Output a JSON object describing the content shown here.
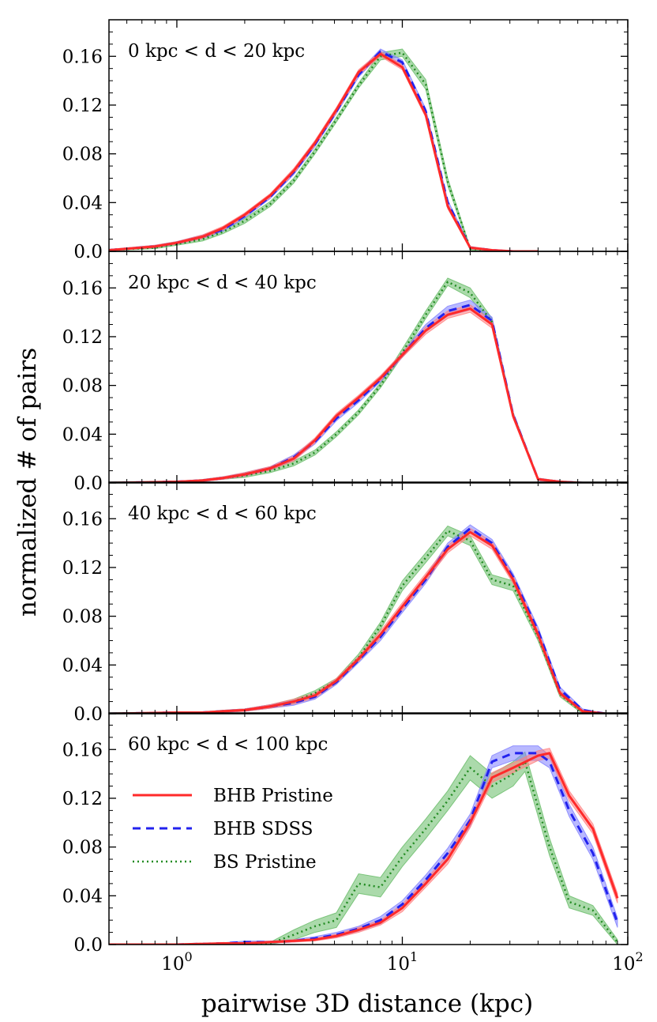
{
  "chart_data": {
    "type": "line",
    "xscale": "log",
    "xlim": [
      0.5,
      100
    ],
    "ylim": [
      0.0,
      0.19
    ],
    "x_ticks": [
      {
        "base": "10",
        "exp": "0"
      },
      {
        "base": "10",
        "exp": "1"
      },
      {
        "base": "10",
        "exp": "2"
      }
    ],
    "y_ticks": [
      "0.0",
      "0.04",
      "0.08",
      "0.12",
      "0.16"
    ],
    "xlabel": "pairwise 3D distance (kpc)",
    "ylabel": "normalized # of pairs",
    "legend": [
      {
        "key": "bhb_pristine",
        "label": "BHB Pristine"
      },
      {
        "key": "bhb_sdss",
        "label": "BHB SDSS"
      },
      {
        "key": "bs_pristine",
        "label": "BS Pristine"
      }
    ],
    "colors": {
      "bhb_pristine": "#ff2a2a",
      "bhb_sdss": "#2222ee",
      "bs_pristine": "#228b22",
      "bhb_pristine_band": "#ff8080",
      "bhb_sdss_band": "#8080ff",
      "bs_pristine_band": "#66bb66"
    },
    "panels": [
      {
        "title": "0 kpc < d < 20 kpc",
        "series": {
          "bhb_pristine": {
            "x": [
              0.5,
              0.8,
              1.0,
              1.3,
              1.6,
              2.0,
              2.6,
              3.3,
              4.1,
              5.1,
              6.4,
              8.0,
              10.0,
              12.7,
              15.9,
              20.0,
              25.0,
              31.0,
              40.0
            ],
            "y": [
              0.001,
              0.004,
              0.007,
              0.012,
              0.019,
              0.03,
              0.046,
              0.066,
              0.089,
              0.116,
              0.147,
              0.162,
              0.151,
              0.112,
              0.037,
              0.003,
              0.001,
              0.0,
              0.0
            ],
            "err": [
              0.0005,
              0.001,
              0.001,
              0.0015,
              0.0015,
              0.0015,
              0.0015,
              0.002,
              0.002,
              0.002,
              0.002,
              0.002,
              0.002,
              0.002,
              0.002,
              0.001,
              0.0005,
              0.0,
              0.0
            ]
          },
          "bhb_sdss": {
            "x": [
              0.5,
              0.8,
              1.0,
              1.3,
              1.6,
              2.0,
              2.6,
              3.3,
              4.1,
              5.1,
              6.4,
              8.0,
              10.0,
              12.7,
              15.9,
              20.0,
              25.0,
              31.0,
              40.0
            ],
            "y": [
              0.001,
              0.004,
              0.007,
              0.012,
              0.018,
              0.029,
              0.045,
              0.065,
              0.088,
              0.115,
              0.145,
              0.164,
              0.155,
              0.115,
              0.04,
              0.003,
              0.001,
              0.0,
              0.0
            ],
            "err": [
              0.0005,
              0.001,
              0.001,
              0.0015,
              0.0015,
              0.0015,
              0.0015,
              0.002,
              0.002,
              0.002,
              0.002,
              0.002,
              0.002,
              0.002,
              0.002,
              0.001,
              0.0005,
              0.0,
              0.0
            ]
          },
          "bs_pristine": {
            "x": [
              0.5,
              0.8,
              1.0,
              1.3,
              1.6,
              2.0,
              2.6,
              3.3,
              4.1,
              5.1,
              6.4,
              8.0,
              10.0,
              12.7,
              15.9,
              20.0,
              25.0,
              31.0,
              40.0
            ],
            "y": [
              0.001,
              0.003,
              0.006,
              0.01,
              0.016,
              0.025,
              0.039,
              0.058,
              0.082,
              0.108,
              0.136,
              0.16,
              0.163,
              0.137,
              0.057,
              0.002,
              0.001,
              0.0,
              0.0
            ],
            "err": [
              0.0005,
              0.0008,
              0.001,
              0.0015,
              0.0015,
              0.002,
              0.002,
              0.002,
              0.002,
              0.002,
              0.002,
              0.003,
              0.003,
              0.004,
              0.003,
              0.001,
              0.0005,
              0.0,
              0.0
            ]
          }
        }
      },
      {
        "title": "20 kpc < d < 40 kpc",
        "series": {
          "bhb_pristine": {
            "x": [
              0.5,
              1.0,
              1.3,
              1.6,
              2.0,
              2.6,
              3.3,
              4.1,
              5.1,
              6.4,
              8.0,
              10.0,
              12.7,
              15.9,
              20.0,
              25.0,
              31.0,
              40.0,
              50.0,
              63.0,
              80.0
            ],
            "y": [
              0.0,
              0.001,
              0.002,
              0.004,
              0.007,
              0.012,
              0.02,
              0.035,
              0.055,
              0.07,
              0.086,
              0.105,
              0.125,
              0.138,
              0.143,
              0.13,
              0.055,
              0.003,
              0.001,
              0.0,
              0.0
            ],
            "err": [
              0.0,
              0.0005,
              0.0008,
              0.001,
              0.0015,
              0.0015,
              0.002,
              0.002,
              0.002,
              0.002,
              0.002,
              0.002,
              0.003,
              0.003,
              0.003,
              0.003,
              0.002,
              0.001,
              0.0005,
              0.0,
              0.0
            ]
          },
          "bhb_sdss": {
            "x": [
              0.5,
              1.0,
              1.3,
              1.6,
              2.0,
              2.6,
              3.3,
              4.1,
              5.1,
              6.4,
              8.0,
              10.0,
              12.7,
              15.9,
              20.0,
              25.0,
              31.0,
              40.0,
              50.0,
              63.0,
              80.0
            ],
            "y": [
              0.0,
              0.001,
              0.002,
              0.004,
              0.007,
              0.012,
              0.021,
              0.034,
              0.053,
              0.068,
              0.085,
              0.105,
              0.127,
              0.141,
              0.146,
              0.133,
              0.056,
              0.003,
              0.001,
              0.0,
              0.0
            ],
            "err": [
              0.0,
              0.0005,
              0.0008,
              0.001,
              0.0015,
              0.0015,
              0.002,
              0.002,
              0.002,
              0.002,
              0.002,
              0.002,
              0.003,
              0.004,
              0.004,
              0.003,
              0.002,
              0.001,
              0.0005,
              0.0,
              0.0
            ]
          },
          "bs_pristine": {
            "x": [
              0.5,
              1.0,
              1.3,
              1.6,
              2.0,
              2.6,
              3.3,
              4.1,
              5.1,
              6.4,
              8.0,
              10.0,
              12.7,
              15.9,
              20.0,
              25.0,
              31.0,
              40.0,
              50.0,
              63.0,
              80.0
            ],
            "y": [
              0.0,
              0.001,
              0.002,
              0.004,
              0.006,
              0.01,
              0.016,
              0.025,
              0.04,
              0.058,
              0.08,
              0.107,
              0.138,
              0.165,
              0.156,
              0.132,
              0.056,
              0.003,
              0.001,
              0.0,
              0.0
            ],
            "err": [
              0.0,
              0.0005,
              0.0008,
              0.001,
              0.0015,
              0.0015,
              0.002,
              0.002,
              0.002,
              0.002,
              0.002,
              0.003,
              0.003,
              0.003,
              0.004,
              0.003,
              0.002,
              0.001,
              0.0005,
              0.0,
              0.0
            ]
          }
        }
      },
      {
        "title": "40 kpc < d < 60 kpc",
        "series": {
          "bhb_pristine": {
            "x": [
              0.5,
              1.0,
              1.3,
              1.6,
              2.0,
              2.6,
              3.3,
              4.1,
              5.1,
              6.4,
              8.0,
              10.0,
              12.7,
              15.9,
              20.0,
              25.0,
              31.0,
              40.0,
              50.0,
              63.0,
              80.0
            ],
            "y": [
              0.0,
              0.001,
              0.001,
              0.002,
              0.003,
              0.006,
              0.01,
              0.015,
              0.027,
              0.045,
              0.065,
              0.088,
              0.112,
              0.135,
              0.149,
              0.138,
              0.11,
              0.065,
              0.017,
              0.002,
              0.0
            ],
            "err": [
              0.0,
              0.0005,
              0.0005,
              0.0008,
              0.001,
              0.0015,
              0.002,
              0.002,
              0.002,
              0.002,
              0.003,
              0.003,
              0.003,
              0.003,
              0.003,
              0.003,
              0.003,
              0.003,
              0.002,
              0.001,
              0.0
            ]
          },
          "bhb_sdss": {
            "x": [
              0.5,
              1.0,
              1.3,
              1.6,
              2.0,
              2.6,
              3.3,
              4.1,
              5.1,
              6.4,
              8.0,
              10.0,
              12.7,
              15.9,
              20.0,
              25.0,
              31.0,
              40.0,
              50.0,
              63.0,
              80.0
            ],
            "y": [
              0.0,
              0.001,
              0.001,
              0.002,
              0.003,
              0.006,
              0.009,
              0.014,
              0.026,
              0.044,
              0.063,
              0.086,
              0.11,
              0.137,
              0.152,
              0.14,
              0.112,
              0.068,
              0.02,
              0.003,
              0.0
            ],
            "err": [
              0.0,
              0.0005,
              0.0005,
              0.0008,
              0.001,
              0.0015,
              0.002,
              0.002,
              0.002,
              0.002,
              0.003,
              0.003,
              0.003,
              0.003,
              0.003,
              0.003,
              0.003,
              0.003,
              0.002,
              0.001,
              0.0
            ]
          },
          "bs_pristine": {
            "x": [
              0.5,
              1.0,
              1.3,
              1.6,
              2.0,
              2.6,
              3.3,
              4.1,
              5.1,
              6.4,
              8.0,
              10.0,
              12.7,
              15.9,
              20.0,
              25.0,
              31.0,
              40.0,
              50.0,
              63.0,
              80.0
            ],
            "y": [
              0.0,
              0.001,
              0.001,
              0.002,
              0.003,
              0.006,
              0.01,
              0.017,
              0.027,
              0.046,
              0.072,
              0.105,
              0.128,
              0.15,
              0.142,
              0.11,
              0.105,
              0.063,
              0.016,
              0.001,
              0.0
            ],
            "err": [
              0.0,
              0.0005,
              0.0005,
              0.0008,
              0.001,
              0.0015,
              0.002,
              0.002,
              0.002,
              0.003,
              0.003,
              0.004,
              0.004,
              0.004,
              0.004,
              0.004,
              0.004,
              0.003,
              0.002,
              0.001,
              0.0
            ]
          }
        }
      },
      {
        "title": "60 kpc < d < 100 kpc",
        "series": {
          "bhb_pristine": {
            "x": [
              0.5,
              1.0,
              1.6,
              2.0,
              2.6,
              3.3,
              4.1,
              5.1,
              6.4,
              8.0,
              10.0,
              12.7,
              15.9,
              20.0,
              25.0,
              31.0,
              40.0,
              45.0,
              55.0,
              70.0,
              90.0
            ],
            "y": [
              0.0,
              0.0,
              0.001,
              0.001,
              0.002,
              0.003,
              0.004,
              0.007,
              0.012,
              0.018,
              0.03,
              0.05,
              0.07,
              0.1,
              0.137,
              0.145,
              0.155,
              0.157,
              0.122,
              0.095,
              0.038
            ],
            "err": [
              0.0,
              0.0,
              0.0005,
              0.0005,
              0.0008,
              0.001,
              0.001,
              0.0015,
              0.002,
              0.002,
              0.003,
              0.003,
              0.004,
              0.004,
              0.004,
              0.004,
              0.004,
              0.004,
              0.004,
              0.004,
              0.004
            ]
          },
          "bhb_sdss": {
            "x": [
              0.5,
              1.0,
              1.6,
              2.0,
              2.6,
              3.3,
              4.1,
              5.1,
              6.4,
              8.0,
              10.0,
              12.7,
              15.9,
              20.0,
              25.0,
              31.0,
              40.0,
              45.0,
              55.0,
              70.0,
              90.0
            ],
            "y": [
              0.0,
              0.0,
              0.001,
              0.002,
              0.002,
              0.003,
              0.005,
              0.008,
              0.013,
              0.02,
              0.033,
              0.053,
              0.075,
              0.102,
              0.15,
              0.157,
              0.157,
              0.15,
              0.11,
              0.075,
              0.018
            ],
            "err": [
              0.0,
              0.0,
              0.0005,
              0.0008,
              0.0008,
              0.001,
              0.0015,
              0.002,
              0.002,
              0.003,
              0.003,
              0.004,
              0.004,
              0.005,
              0.005,
              0.006,
              0.006,
              0.005,
              0.005,
              0.005,
              0.004
            ]
          },
          "bs_pristine": {
            "x": [
              0.5,
              1.0,
              1.6,
              2.0,
              2.6,
              3.3,
              4.1,
              5.1,
              6.4,
              8.0,
              10.0,
              12.7,
              15.9,
              20.0,
              25.0,
              31.0,
              35.0,
              45.0,
              55.0,
              70.0,
              90.0
            ],
            "y": [
              0.0,
              0.0,
              0.001,
              0.001,
              0.001,
              0.008,
              0.015,
              0.02,
              0.05,
              0.047,
              0.072,
              0.095,
              0.118,
              0.145,
              0.13,
              0.14,
              0.15,
              0.08,
              0.035,
              0.028,
              0.002
            ],
            "err": [
              0.0,
              0.0,
              0.0005,
              0.0008,
              0.001,
              0.004,
              0.005,
              0.006,
              0.008,
              0.008,
              0.008,
              0.008,
              0.008,
              0.01,
              0.01,
              0.01,
              0.008,
              0.007,
              0.005,
              0.004,
              0.002
            ]
          }
        }
      }
    ]
  }
}
